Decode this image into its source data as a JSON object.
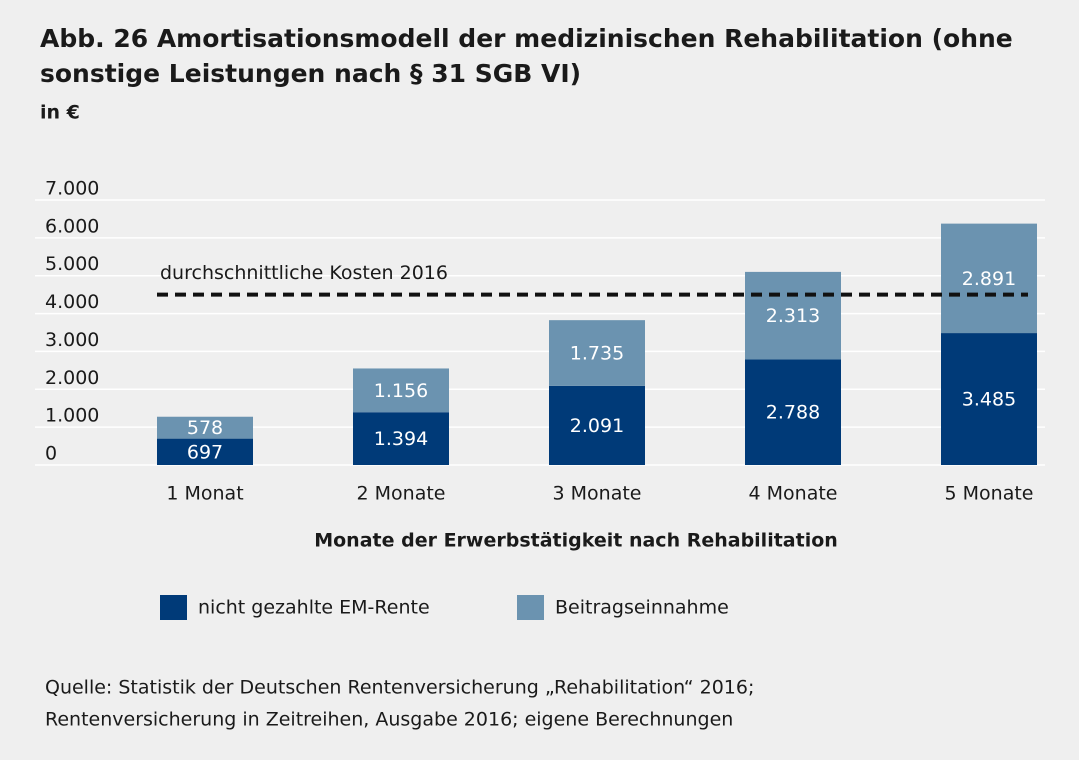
{
  "chart_data": {
    "type": "stacked_bar",
    "title_line1": "Abb. 26 Amortisationsmodell der medizinischen Rehabilitation (ohne",
    "title_line2": "sonstige Leistungen nach § 31 SGB VI)",
    "subtitle": "in €",
    "x_label": "Monate der Erwerbstätigkeit nach Rehabilitation",
    "categories": [
      "1 Monat",
      "2 Monate",
      "3 Monate",
      "4 Monate",
      "5 Monate"
    ],
    "series": [
      {
        "name": "nicht gezahlte EM-Rente",
        "color": "#003a78",
        "values": [
          697,
          1394,
          2091,
          2788,
          3485
        ],
        "value_labels": [
          "697",
          "1.394",
          "2.091",
          "2.788",
          "3.485"
        ]
      },
      {
        "name": "Beitragseinnahme",
        "color": "#6b93b0",
        "values": [
          578,
          1156,
          1735,
          2313,
          2891
        ],
        "value_labels": [
          "578",
          "1.156",
          "1.735",
          "2.313",
          "2.891"
        ]
      }
    ],
    "reference_line": {
      "label": "durchschnittliche Kosten 2016",
      "value": 4500
    },
    "ylim": [
      0,
      7000
    ],
    "yticks": [
      0,
      {
        "value": 1000,
        "label": "1.000"
      },
      {
        "value": 2000,
        "label": "2.000"
      },
      {
        "value": 3000,
        "label": "3.000"
      },
      {
        "value": 4000,
        "label": "4.000"
      },
      {
        "value": 5000,
        "label": "5.000"
      },
      {
        "value": 6000,
        "label": "6.000"
      },
      {
        "value": 7000,
        "label": "7.000"
      }
    ],
    "grid": true,
    "source_line1": "Quelle: Statistik der Deutschen Rentenversicherung „Rehabilitation“ 2016;",
    "source_line2": "Rentenversicherung in Zeitreihen, Ausgabe 2016; eigene Berechnungen"
  }
}
